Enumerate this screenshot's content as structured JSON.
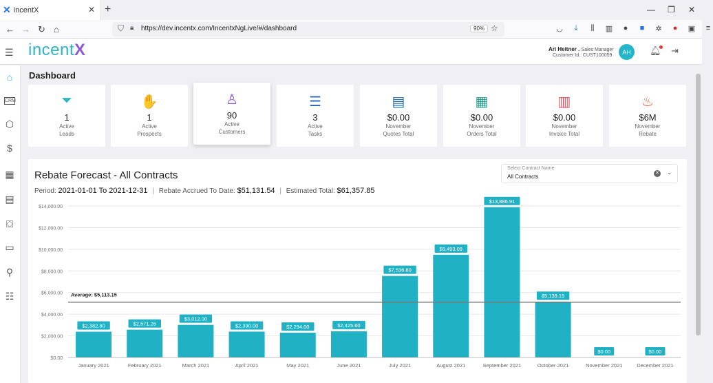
{
  "browser": {
    "tab_title": "incentX",
    "url": "https://dev.incentx.com/IncentxNgLive/#/dashboard",
    "zoom": "90%"
  },
  "app": {
    "logo_text": "incent",
    "logo_x": "X",
    "user_name": "Ari Heitner .",
    "user_role": "Sales Manager",
    "customer_id": "Customer Id.: CUST100059",
    "avatar_initials": "AH"
  },
  "page": {
    "title": "Dashboard"
  },
  "stats": [
    {
      "value": "1",
      "label1": "Active",
      "label2": "Leads",
      "icon": "funnel-icon",
      "color": "#2fb5c6"
    },
    {
      "value": "1",
      "label1": "Active",
      "label2": "Prospects",
      "icon": "handshake-icon",
      "color": "#a45ad8"
    },
    {
      "value": "90",
      "label1": "Active",
      "label2": "Customers",
      "icon": "customer-icon",
      "color": "#8b5cd6"
    },
    {
      "value": "3",
      "label1": "Active",
      "label2": "Tasks",
      "icon": "task-list-icon",
      "color": "#2f6fc4"
    },
    {
      "value": "$0.00",
      "label1": "November",
      "label2": "Quotes Total",
      "icon": "quote-icon",
      "color": "#1e6fb8"
    },
    {
      "value": "$0.00",
      "label1": "November",
      "label2": "Orders Total",
      "icon": "order-icon",
      "color": "#2aa08c"
    },
    {
      "value": "$0.00",
      "label1": "November",
      "label2": "Invoice Total",
      "icon": "invoice-icon",
      "color": "#e05260"
    },
    {
      "value": "$6M",
      "label1": "November",
      "label2": "Rebate",
      "icon": "rebate-icon",
      "color": "#e0664a"
    }
  ],
  "forecast": {
    "title": "Rebate Forecast - All Contracts",
    "period_label": "Period:",
    "period_value": "2021-01-01 To 2021-12-31",
    "accrued_label": "Rebate Accrued To Date:",
    "accrued_value": "$51,131.54",
    "estimated_label": "Estimated Total:",
    "estimated_value": "$61,357.85",
    "select_label": "Select Contract Name",
    "select_value": "All Contracts"
  },
  "chart_data": {
    "type": "bar",
    "categories": [
      "January 2021",
      "February 2021",
      "March 2021",
      "April 2021",
      "May 2021",
      "June 2021",
      "July 2021",
      "August 2021",
      "September 2021",
      "October 2021",
      "November 2021",
      "December 2021"
    ],
    "values": [
      2382.8,
      2571.26,
      3012.0,
      2390.0,
      2294.0,
      2425.6,
      7536.8,
      9493.09,
      13886.91,
      5139.15,
      0,
      0
    ],
    "value_labels": [
      "$2,382.80",
      "$2,571.26",
      "$3,012.00",
      "$2,390.00",
      "$2,294.00",
      "$2,425.60",
      "$7,536.80",
      "$9,493.09",
      "$13,886.91",
      "$5,139.15",
      "$0.00",
      "$0.00"
    ],
    "yticks": [
      0,
      2000,
      4000,
      6000,
      8000,
      10000,
      12000,
      14000
    ],
    "ytick_labels": [
      "$0.00",
      "$2,000.00",
      "$4,000.00",
      "$6,000.00",
      "$8,000.00",
      "$10,000.00",
      "$12,000.00",
      "$14,000.00"
    ],
    "ylim": [
      0,
      14000
    ],
    "average": 5113.15,
    "average_label": "Average: $5,113.15",
    "bar_color": "#20b2c4",
    "grid": true
  }
}
